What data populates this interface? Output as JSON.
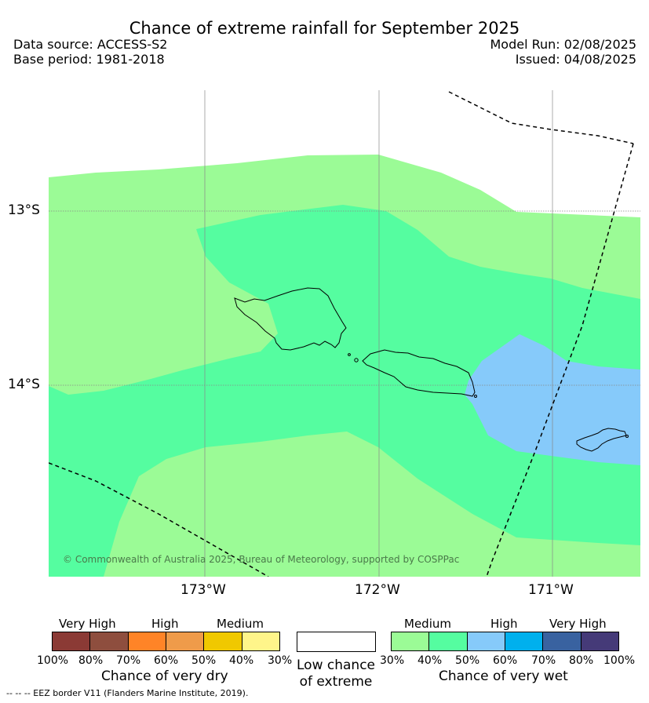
{
  "title": "Chance of extreme rainfall for September 2025",
  "data_source": "Data source: ACCESS-S2",
  "base_period": "Base period: 1981-2018",
  "model_run": "Model Run: 02/08/2025",
  "issued": "Issued: 04/08/2025",
  "lat_labels": [
    "13°S",
    "14°S"
  ],
  "lon_labels": [
    "173°W",
    "172°W",
    "171°W"
  ],
  "copyright": "© Commonwealth of Australia 2025, Bureau of Meteorology, supported by COSPPac",
  "legend": {
    "dry": {
      "categories": [
        "Very High",
        "High",
        "Medium"
      ],
      "colors": [
        "#8b3a35",
        "#8e4e3e",
        "#ff8427",
        "#ef9b4a",
        "#f0c800",
        "#fff58a"
      ],
      "ticks": [
        "100%",
        "80%",
        "70%",
        "60%",
        "50%",
        "40%",
        "30%"
      ],
      "caption": "Chance of very dry"
    },
    "low": {
      "caption": "Low chance of extreme",
      "color": "#ffffff"
    },
    "wet": {
      "categories": [
        "Medium",
        "High",
        "Very High"
      ],
      "colors": [
        "#9bfb96",
        "#55fda0",
        "#86cafa",
        "#00b0ed",
        "#3962a0",
        "#453a78"
      ],
      "ticks": [
        "30%",
        "40%",
        "50%",
        "60%",
        "70%",
        "80%",
        "100%"
      ],
      "caption": "Chance of very wet"
    }
  },
  "footnote": "--  --  -- EEZ border V11 (Flanders Marine Institute, 2019)."
}
